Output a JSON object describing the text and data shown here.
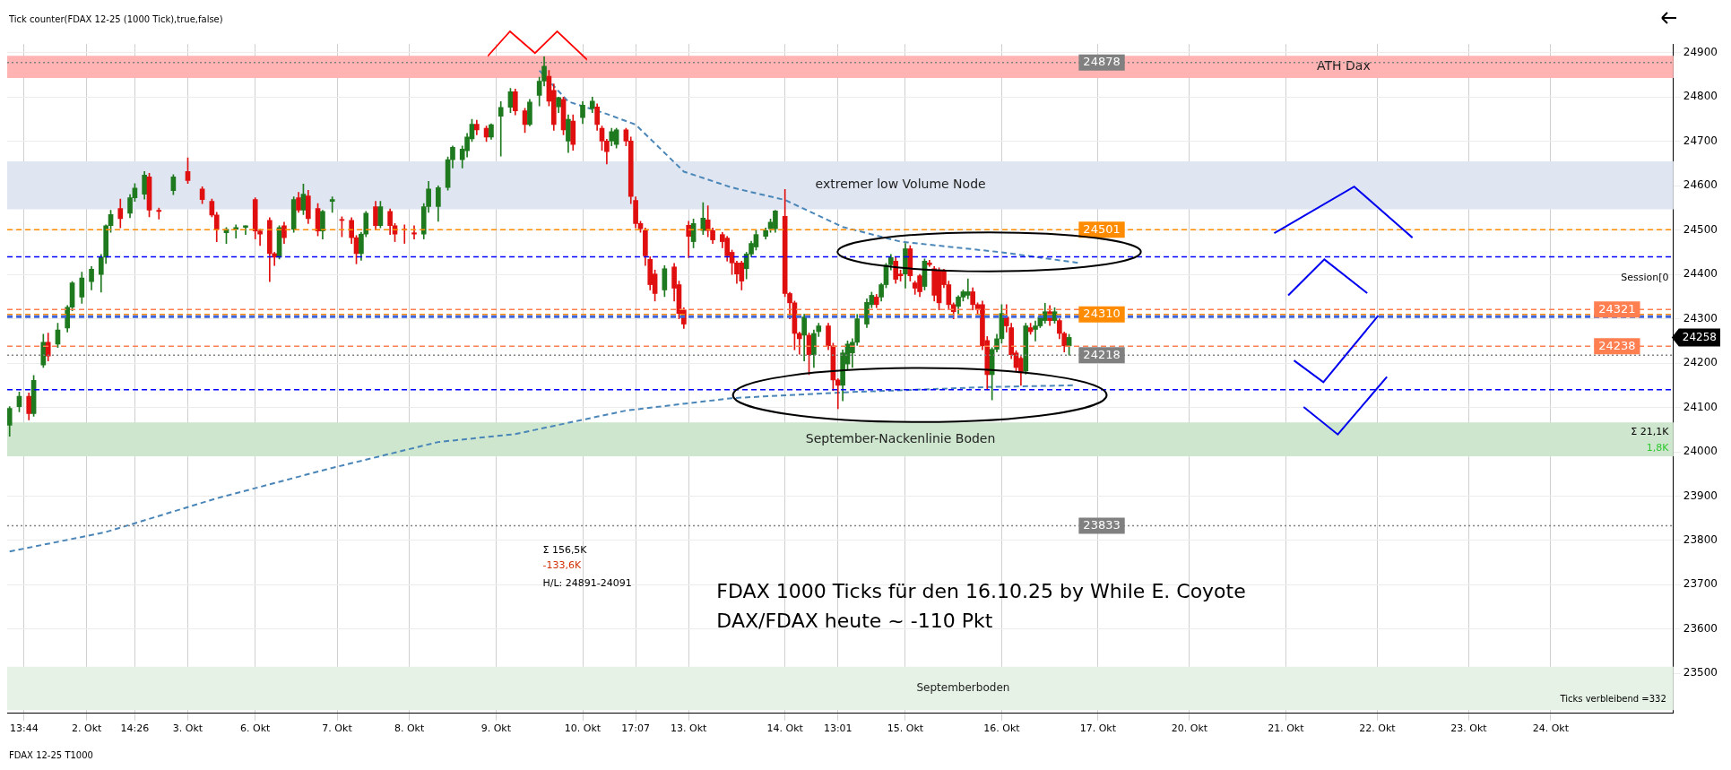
{
  "chart_data": {
    "type": "candlestick",
    "subtitle": "Tick counter(FDAX 12-25 (1000 Tick),true,false)",
    "categories": [
      null,
      null,
      null,
      "13:44",
      null,
      null,
      null,
      null,
      null,
      null,
      null,
      null,
      null,
      null,
      null,
      null,
      "2. Okt",
      null,
      null,
      null,
      null,
      null,
      null,
      null,
      null,
      null,
      "14:26",
      null,
      null,
      null,
      null,
      null,
      null,
      null,
      null,
      null,
      null,
      "3. Okt",
      null,
      null,
      null,
      null,
      null,
      null,
      null,
      null,
      null,
      null,
      null,
      null,
      null,
      "6. Okt",
      null,
      null,
      null,
      null,
      null,
      null,
      null,
      null,
      null,
      null,
      null,
      null,
      null,
      null,
      null,
      null,
      "7. Okt",
      null,
      null,
      null,
      null,
      null,
      null,
      null,
      null,
      null,
      null,
      null,
      null,
      null,
      null,
      "8. Okt",
      null,
      null,
      null,
      null,
      null,
      null,
      null,
      null,
      null,
      null,
      null,
      null,
      null,
      null,
      null,
      null,
      null,
      "9. Okt",
      null,
      null,
      null,
      null,
      null,
      null,
      null,
      null,
      null,
      null,
      null,
      null,
      null,
      null,
      null,
      null,
      null,
      "10. Okt",
      null,
      null,
      null,
      null,
      null,
      null,
      null,
      null,
      null,
      null,
      "17:07",
      null,
      null,
      null,
      null,
      null,
      null,
      null,
      null,
      null,
      null,
      "13. Okt",
      null,
      null,
      null,
      null,
      null,
      null,
      null,
      null,
      null,
      null,
      null,
      null,
      null,
      null,
      null,
      null,
      null,
      null,
      null,
      "14. Okt",
      null,
      null,
      null,
      null,
      null,
      null,
      null,
      null,
      null,
      null,
      "13:01",
      null,
      null,
      null,
      null,
      null,
      null,
      null,
      null,
      null,
      null,
      null,
      null,
      null,
      "15. Okt",
      null,
      null,
      null,
      null,
      null,
      null,
      null,
      null,
      null,
      null,
      null,
      null,
      null,
      null,
      null,
      null,
      null,
      null,
      null,
      "16. Okt",
      null,
      null,
      null,
      null,
      null,
      null,
      null,
      null,
      null,
      null,
      null,
      null,
      null,
      null,
      null,
      null,
      null,
      null,
      null,
      "17. Okt",
      null,
      null,
      null,
      null,
      null,
      null,
      null,
      null,
      null,
      null,
      null,
      null,
      null,
      null,
      null,
      null,
      null,
      null,
      "20. Okt",
      null,
      null,
      null,
      null,
      null,
      null,
      null,
      null,
      null,
      null,
      null,
      null,
      null,
      null,
      null,
      null,
      null,
      null,
      null,
      "21. Okt",
      null,
      null,
      null,
      null,
      null,
      null,
      null,
      null,
      null,
      null,
      null,
      null,
      null,
      null,
      null,
      null,
      null,
      null,
      "22. Okt",
      null,
      null,
      null,
      null,
      null,
      null,
      null,
      null,
      null,
      null,
      null,
      null,
      null,
      null,
      null,
      null,
      null,
      null,
      "23. Okt",
      null,
      null,
      null,
      null,
      null,
      null,
      null,
      null,
      null,
      null,
      null,
      null,
      null,
      null,
      null,
      null,
      "24. Okt",
      null,
      null,
      null,
      null,
      null,
      null,
      null,
      null,
      null,
      null,
      null,
      null,
      null,
      null,
      null,
      null,
      null,
      null,
      null,
      null,
      null,
      null,
      null,
      null,
      null
    ],
    "ohlc": [
      [
        24060,
        24102,
        24035,
        24098
      ],
      null,
      [
        24102,
        24135,
        24090,
        24125
      ],
      null,
      [
        24125,
        24133,
        24072,
        24086
      ],
      [
        24086,
        24172,
        24080,
        24161
      ],
      null,
      [
        24196,
        24265,
        24190,
        24247
      ],
      [
        24247,
        24268,
        24205,
        24216
      ],
      null,
      [
        24243,
        24290,
        24235,
        24275
      ],
      null,
      [
        24279,
        24330,
        24270,
        24326
      ],
      [
        24326,
        24384,
        24318,
        24381
      ],
      null,
      [
        24349,
        24405,
        24335,
        24392
      ],
      null,
      [
        24384,
        24418,
        24365,
        24412
      ],
      null,
      [
        24400,
        24445,
        24360,
        24439
      ],
      [
        24439,
        24512,
        24425,
        24510
      ],
      [
        24510,
        24545,
        24495,
        24535
      ],
      null,
      [
        24549,
        24570,
        24505,
        24526
      ],
      null,
      [
        24538,
        24580,
        24528,
        24573
      ],
      [
        24573,
        24605,
        24565,
        24595
      ],
      null,
      [
        24581,
        24632,
        24570,
        24624
      ],
      [
        24620,
        24628,
        24530,
        24545
      ],
      null,
      [
        24545,
        24550,
        24525,
        24542
      ],
      null,
      null,
      [
        24589,
        24625,
        24580,
        24620
      ],
      null,
      null,
      [
        24632,
        24663,
        24605,
        24612
      ],
      null,
      null,
      [
        24593,
        24598,
        24560,
        24569
      ],
      null,
      [
        24565,
        24570,
        24530,
        24534
      ],
      [
        24534,
        24540,
        24474,
        24502
      ],
      null,
      [
        24494,
        24506,
        24470,
        24502
      ],
      null,
      [
        24502,
        24512,
        24482,
        24506
      ],
      null,
      [
        24506,
        24510,
        24490,
        24510
      ],
      null,
      [
        24569,
        24573,
        24480,
        24498
      ],
      [
        24498,
        24502,
        24465,
        24491
      ],
      null,
      [
        24522,
        24528,
        24384,
        24447
      ],
      [
        24447,
        24450,
        24420,
        24439
      ],
      [
        24439,
        24510,
        24435,
        24506
      ],
      [
        24510,
        24518,
        24470,
        24483
      ],
      null,
      [
        24502,
        24575,
        24495,
        24569
      ],
      [
        24573,
        24585,
        24540,
        24545
      ],
      [
        24545,
        24604,
        24535,
        24581
      ],
      [
        24577,
        24590,
        24515,
        24526
      ],
      null,
      [
        24549,
        24560,
        24487,
        24498
      ],
      [
        24498,
        24545,
        24480,
        24542
      ],
      null,
      [
        24565,
        24575,
        24540,
        24569
      ],
      null,
      [
        24524,
        24530,
        24485,
        24522
      ],
      null,
      [
        24522,
        24528,
        24470,
        24483
      ],
      [
        24483,
        24488,
        24424,
        24447
      ],
      [
        24447,
        24495,
        24432,
        24491
      ],
      [
        24491,
        24542,
        24485,
        24538
      ],
      null,
      [
        24553,
        24565,
        24500,
        24510
      ],
      [
        24510,
        24565,
        24505,
        24553
      ],
      null,
      [
        24542,
        24548,
        24490,
        24510
      ],
      [
        24510,
        24515,
        24474,
        24491
      ],
      null,
      [
        24502,
        24512,
        24470,
        24500
      ],
      null,
      [
        24494,
        24510,
        24480,
        24491
      ],
      null,
      [
        24491,
        24560,
        24480,
        24553
      ],
      [
        24553,
        24610,
        24540,
        24593
      ],
      null,
      [
        24553,
        24600,
        24520,
        24596
      ],
      null,
      [
        24596,
        24665,
        24590,
        24659
      ],
      [
        24659,
        24690,
        24640,
        24687
      ],
      null,
      [
        24659,
        24690,
        24640,
        24683
      ],
      [
        24679,
        24718,
        24665,
        24710
      ],
      [
        24706,
        24750,
        24700,
        24739
      ],
      [
        24739,
        24748,
        24715,
        24726
      ],
      null,
      [
        24730,
        24735,
        24700,
        24710
      ],
      [
        24710,
        24740,
        24705,
        24738
      ],
      null,
      [
        24757,
        24790,
        24667,
        24777
      ],
      null,
      [
        24777,
        24820,
        24765,
        24812
      ],
      [
        24812,
        24818,
        24760,
        24769
      ],
      null,
      [
        24769,
        24775,
        24720,
        24738
      ],
      [
        24738,
        24795,
        24735,
        24789
      ],
      null,
      [
        24804,
        24845,
        24780,
        24836
      ],
      [
        24836,
        24891,
        24825,
        24870
      ],
      [
        24847,
        24860,
        24780,
        24791
      ],
      [
        24815,
        24830,
        24725,
        24738
      ],
      [
        24778,
        24800,
        24765,
        24799
      ],
      [
        24795,
        24800,
        24715,
        24726
      ],
      [
        24701,
        24760,
        24675,
        24750
      ],
      [
        24746,
        24760,
        24680,
        24693
      ],
      null,
      [
        24754,
        24790,
        24740,
        24782
      ],
      null,
      [
        24774,
        24800,
        24765,
        24791
      ],
      [
        24778,
        24785,
        24725,
        24738
      ],
      [
        24730,
        24735,
        24680,
        24701
      ],
      [
        24701,
        24705,
        24649,
        24677
      ],
      [
        24701,
        24730,
        24690,
        24722
      ],
      [
        24693,
        24730,
        24685,
        24726
      ],
      null,
      [
        24726,
        24730,
        24690,
        24701
      ],
      [
        24701,
        24710,
        24560,
        24576
      ],
      [
        24567,
        24575,
        24505,
        24515
      ],
      [
        24515,
        24520,
        24495,
        24503
      ],
      [
        24499,
        24505,
        24420,
        24442
      ],
      [
        24434,
        24440,
        24365,
        24377
      ],
      [
        24401,
        24410,
        24340,
        24357
      ],
      null,
      [
        24365,
        24420,
        24350,
        24413
      ],
      null,
      [
        24417,
        24425,
        24340,
        24369
      ],
      [
        24377,
        24385,
        24300,
        24312
      ],
      [
        24320,
        24325,
        24278,
        24288
      ],
      [
        24511,
        24520,
        24438,
        24486
      ],
      [
        24474,
        24525,
        24460,
        24515
      ],
      null,
      [
        24499,
        24562,
        24490,
        24527
      ],
      [
        24523,
        24555,
        24485,
        24499
      ],
      [
        24499,
        24505,
        24470,
        24478
      ],
      null,
      [
        24490,
        24495,
        24460,
        24474
      ],
      [
        24482,
        24486,
        24430,
        24442
      ],
      [
        24450,
        24455,
        24400,
        24426
      ],
      [
        24426,
        24430,
        24380,
        24401
      ],
      [
        24426,
        24430,
        24365,
        24385
      ],
      [
        24413,
        24450,
        24390,
        24446
      ],
      [
        24446,
        24475,
        24440,
        24470
      ],
      [
        24462,
        24500,
        24455,
        24490
      ],
      null,
      [
        24486,
        24505,
        24480,
        24499
      ],
      [
        24503,
        24525,
        24495,
        24518
      ],
      [
        24503,
        24545,
        24495,
        24543
      ],
      null,
      [
        24531,
        24592,
        24350,
        24357
      ],
      [
        24357,
        24360,
        24300,
        24336
      ],
      [
        24336,
        24340,
        24230,
        24267
      ],
      [
        24267,
        24270,
        24220,
        24255
      ],
      [
        24263,
        24310,
        24205,
        24304
      ],
      [
        24263,
        24268,
        24174,
        24219
      ],
      [
        24219,
        24275,
        24190,
        24267
      ],
      [
        24271,
        24290,
        24260,
        24284
      ],
      null,
      [
        24284,
        24290,
        24230,
        24239
      ],
      [
        24239,
        24245,
        24138,
        24162
      ],
      [
        24162,
        24165,
        24097,
        24150
      ],
      [
        24150,
        24230,
        24115,
        24223
      ],
      [
        24198,
        24250,
        24185,
        24243
      ],
      [
        24223,
        24255,
        24190,
        24247
      ],
      [
        24247,
        24310,
        24240,
        24300
      ],
      null,
      [
        24288,
        24345,
        24280,
        24337
      ],
      [
        24332,
        24360,
        24325,
        24353
      ],
      [
        24349,
        24355,
        24325,
        24332
      ],
      [
        24349,
        24380,
        24340,
        24377
      ],
      [
        24377,
        24425,
        24370,
        24421
      ],
      [
        24422,
        24445,
        24410,
        24438
      ],
      [
        24430,
        24440,
        24380,
        24389
      ],
      [
        24401,
        24410,
        24385,
        24397
      ],
      [
        24401,
        24470,
        24369,
        24458
      ],
      [
        24458,
        24465,
        24385,
        24397
      ],
      [
        24381,
        24385,
        24355,
        24369
      ],
      [
        24397,
        24400,
        24350,
        24361
      ],
      [
        24373,
        24435,
        24365,
        24430
      ],
      [
        24426,
        24432,
        24418,
        24422
      ],
      [
        24413,
        24418,
        24340,
        24353
      ],
      [
        24409,
        24415,
        24320,
        24336
      ],
      [
        24409,
        24412,
        24370,
        24377
      ],
      [
        24377,
        24385,
        24320,
        24332
      ],
      [
        24332,
        24336,
        24300,
        24316
      ],
      [
        24328,
        24352,
        24310,
        24349
      ],
      [
        24349,
        24365,
        24340,
        24361
      ],
      [
        24353,
        24390,
        24345,
        24361
      ],
      [
        24361,
        24370,
        24320,
        24332
      ],
      [
        24332,
        24336,
        24310,
        24320
      ],
      [
        24332,
        24340,
        24230,
        24239
      ],
      [
        24251,
        24260,
        24140,
        24174
      ],
      [
        24174,
        24235,
        24117,
        24231
      ],
      [
        24231,
        24265,
        24225,
        24255
      ],
      [
        24255,
        24332,
        24245,
        24312
      ],
      [
        24304,
        24332,
        24270,
        24284
      ],
      [
        24280,
        24290,
        24210,
        24219
      ],
      [
        24223,
        24228,
        24180,
        24190
      ],
      [
        24211,
        24215,
        24150,
        24178
      ],
      [
        24182,
        24290,
        24175,
        24284
      ],
      [
        24280,
        24290,
        24265,
        24271
      ],
      [
        24276,
        24295,
        24250,
        24284
      ],
      [
        24284,
        24310,
        24280,
        24304
      ],
      [
        24296,
        24335,
        24290,
        24316
      ],
      [
        24316,
        24330,
        24285,
        24296
      ],
      [
        24296,
        24325,
        24290,
        24316
      ],
      [
        24296,
        24300,
        24255,
        24267
      ],
      [
        24267,
        24270,
        24225,
        24239
      ],
      [
        24239,
        24265,
        24218,
        24258
      ],
      null,
      null,
      null,
      null,
      null,
      null,
      null,
      null,
      null,
      null,
      null,
      null,
      null,
      null,
      null,
      null,
      null,
      null,
      null,
      null,
      null,
      null,
      null,
      null,
      null,
      null,
      null,
      null,
      null,
      null,
      null,
      null,
      null,
      null,
      null,
      null,
      null,
      null,
      null,
      null,
      null,
      null,
      null,
      null,
      null,
      null,
      null,
      null,
      null,
      null,
      null,
      null,
      null,
      null,
      null,
      null,
      null,
      null,
      null,
      null,
      null,
      null,
      null,
      null,
      null,
      null,
      null,
      null,
      null,
      null,
      null,
      null,
      null,
      null,
      null,
      null,
      null,
      null,
      null,
      null,
      null,
      null,
      null,
      null,
      null,
      null,
      null,
      null,
      null,
      null,
      null,
      null,
      null,
      null,
      null,
      null,
      null,
      null,
      null,
      null,
      null,
      null,
      null,
      null,
      null,
      null,
      null,
      null,
      null,
      null,
      null,
      null,
      null,
      null,
      null,
      null,
      null,
      null,
      null,
      null,
      null,
      null,
      null,
      null,
      null
    ],
    "series": [
      {
        "type": "line",
        "color": "#4a86b8",
        "line_style": "dashed",
        "values": [
          23775,
          null,
          null,
          null,
          null,
          null,
          null,
          null,
          null,
          null,
          null,
          null,
          null,
          null,
          null,
          null,
          null,
          null,
          null,
          null,
          23819,
          null,
          null,
          null,
          null,
          null,
          null,
          null,
          null,
          null,
          null,
          null,
          null,
          null,
          null,
          null,
          null,
          null,
          null,
          null,
          null,
          null,
          null,
          23895,
          null,
          null,
          null,
          null,
          null,
          null,
          null,
          null,
          null,
          null,
          null,
          null,
          null,
          null,
          null,
          null,
          null,
          null,
          null,
          null,
          null,
          null,
          23961,
          null,
          null,
          null,
          null,
          null,
          null,
          null,
          null,
          null,
          null,
          null,
          null,
          null,
          null,
          null,
          null,
          null,
          null,
          null,
          null,
          null,
          null,
          24022,
          null,
          null,
          null,
          null,
          null,
          null,
          null,
          null,
          null,
          null,
          null,
          null,
          null,
          null,
          null,
          24040,
          null,
          null,
          null,
          null,
          null,
          null,
          null,
          null,
          null,
          null,
          null,
          null,
          null,
          null,
          null,
          null,
          null,
          null,
          null,
          null,
          null,
          null,
          24093,
          null,
          null,
          null,
          null,
          null,
          null,
          null,
          null,
          null,
          null,
          null,
          null,
          null,
          null,
          null,
          null,
          null,
          null,
          null,
          null,
          null,
          24121,
          null,
          null,
          null,
          null,
          null,
          null,
          null,
          null,
          null,
          null,
          null,
          null,
          null,
          null,
          null,
          null,
          null,
          null,
          null,
          null,
          null,
          null,
          24134,
          null,
          null,
          null,
          null,
          null,
          null,
          null,
          null,
          null,
          null,
          null,
          null,
          null,
          null,
          null,
          null,
          null,
          null,
          null,
          null,
          null,
          null,
          null,
          null,
          null,
          null,
          null,
          null,
          null,
          24146,
          null,
          null,
          null,
          null,
          null,
          null,
          null,
          null,
          null,
          null,
          null,
          null,
          null,
          null,
          null,
          null,
          null,
          24150,
          null,
          null,
          null,
          null,
          null,
          null,
          null,
          null,
          null,
          null,
          null,
          null,
          null,
          null,
          null,
          null,
          null,
          null,
          null,
          null,
          null,
          null,
          null,
          null,
          null,
          null,
          null,
          null,
          null,
          null,
          null,
          null,
          null,
          null,
          null,
          null,
          null,
          null,
          null,
          null,
          null,
          null,
          null,
          null,
          null,
          null,
          null,
          null,
          null,
          null,
          null,
          null,
          null,
          null,
          null,
          null,
          null,
          null,
          null,
          null,
          null,
          null,
          null,
          null,
          null,
          null,
          null,
          null,
          null,
          null,
          null,
          null,
          null,
          null,
          null,
          null,
          null,
          null,
          null,
          null,
          null,
          null,
          null,
          null,
          null,
          null,
          null,
          null,
          null,
          null,
          null,
          null,
          null,
          null,
          null,
          null,
          null,
          null,
          null,
          null,
          null,
          null,
          null,
          null,
          null,
          null,
          null,
          null,
          null,
          null,
          null,
          null,
          null,
          null,
          null,
          null,
          null,
          null,
          null,
          null,
          null,
          null,
          null,
          null
        ]
      },
      {
        "type": "line",
        "color": "#4a86b8",
        "line_style": "dashed",
        "values": [
          null,
          null,
          null,
          null,
          null,
          null,
          null,
          null,
          null,
          null,
          null,
          null,
          null,
          null,
          null,
          null,
          null,
          null,
          null,
          null,
          null,
          null,
          null,
          null,
          null,
          null,
          null,
          null,
          null,
          null,
          null,
          null,
          null,
          null,
          null,
          null,
          null,
          null,
          null,
          null,
          null,
          null,
          null,
          null,
          null,
          null,
          null,
          null,
          null,
          null,
          null,
          null,
          null,
          null,
          null,
          null,
          null,
          null,
          null,
          null,
          null,
          null,
          null,
          null,
          null,
          null,
          null,
          null,
          null,
          null,
          null,
          null,
          null,
          null,
          null,
          null,
          null,
          null,
          null,
          null,
          null,
          null,
          null,
          null,
          null,
          null,
          null,
          null,
          null,
          null,
          null,
          null,
          null,
          null,
          null,
          null,
          null,
          null,
          null,
          null,
          null,
          null,
          null,
          null,
          null,
          null,
          null,
          null,
          null,
          null,
          24860,
          null,
          null,
          null,
          null,
          null,
          24790,
          null,
          null,
          null,
          null,
          null,
          null,
          null,
          24762,
          null,
          null,
          null,
          null,
          null,
          24738,
          null,
          null,
          null,
          null,
          null,
          null,
          null,
          null,
          null,
          24632,
          null,
          null,
          null,
          null,
          null,
          null,
          null,
          null,
          null,
          24596,
          null,
          null,
          null,
          null,
          null,
          null,
          null,
          null,
          null,
          null,
          24568,
          null,
          null,
          null,
          null,
          null,
          null,
          null,
          null,
          null,
          null,
          null,
          24507,
          null,
          null,
          null,
          null,
          null,
          null,
          null,
          null,
          null,
          null,
          null,
          24474,
          null,
          null,
          null,
          null,
          null,
          null,
          null,
          null,
          null,
          null,
          null,
          null,
          null,
          null,
          null,
          null,
          null,
          null,
          null,
          null,
          24450,
          null,
          null,
          null,
          null,
          null,
          null,
          null,
          null,
          null,
          null,
          null,
          null,
          null,
          null,
          null,
          24426,
          null,
          null,
          null,
          null,
          null,
          null,
          null,
          null,
          null,
          null,
          null,
          null,
          null,
          null,
          null,
          null,
          null,
          null,
          null,
          null,
          null,
          null,
          null,
          null,
          null,
          null,
          null,
          null,
          null,
          null,
          null,
          null,
          null,
          null,
          null,
          null,
          null,
          null,
          null,
          null,
          null,
          null,
          null,
          null,
          null,
          null,
          null,
          null,
          null,
          null,
          null,
          null,
          null,
          null,
          null,
          null,
          null,
          null,
          null,
          null,
          null,
          null,
          null,
          null,
          null,
          null,
          null,
          null,
          null,
          null,
          null,
          null,
          null,
          null,
          null,
          null,
          null,
          null,
          null,
          null,
          null,
          null,
          null,
          null,
          null,
          null,
          null,
          null,
          null,
          null,
          null,
          null,
          null,
          null,
          null,
          null,
          null,
          null,
          null,
          null,
          null,
          null,
          null,
          null,
          null,
          null,
          null,
          null,
          null,
          null,
          null,
          null,
          null,
          null,
          null,
          null,
          null,
          null,
          null,
          null,
          null,
          null,
          null
        ]
      }
    ],
    "ylim": [
      23410,
      24920
    ],
    "yticks": [
      23500,
      23600,
      23700,
      23800,
      23900,
      24000,
      24100,
      24200,
      24300,
      24400,
      24500,
      24600,
      24700,
      24800,
      24900
    ],
    "grid": true,
    "marker": "none",
    "bands": [
      {
        "axis": "y",
        "from": 24843,
        "to": 24893,
        "label": "ATH Dax",
        "color": "#ffb3b3"
      },
      {
        "axis": "y",
        "from": 24547,
        "to": 24655,
        "label": "extremer low Volume Node",
        "color": "#dfe6f1"
      },
      {
        "axis": "y",
        "from": 23990,
        "to": 24066,
        "label": "September-Nackenlinie Boden",
        "color": "#cde6cd"
      },
      {
        "axis": "y",
        "from": 23417,
        "to": 23515,
        "label": "Septemberboden",
        "color": "#e6f2e6"
      }
    ],
    "ref_lines": [
      {
        "axis": "y",
        "value": 24878,
        "label": "24878",
        "color": "#808080",
        "line_style": "dotted"
      },
      {
        "axis": "y",
        "value": 24501,
        "label": "24501",
        "color": "#ff8c00",
        "line_style": "dashed"
      },
      {
        "axis": "y",
        "value": 24310,
        "label": "24310",
        "color": "#ff8c00",
        "line_style": "dashed"
      },
      {
        "axis": "y",
        "value": 24305,
        "color": "#3c64dc",
        "line_style": "dashed"
      },
      {
        "axis": "y",
        "value": 24321,
        "label": "24321",
        "color": "#ff7f50",
        "line_style": "dashed"
      },
      {
        "axis": "y",
        "value": 24238,
        "label": "24238",
        "color": "#ff7f50",
        "line_style": "dashed"
      },
      {
        "axis": "y",
        "value": 24218,
        "label": "24218",
        "color": "#808080",
        "line_style": "dotted"
      },
      {
        "axis": "y",
        "value": 23833,
        "label": "23833",
        "color": "#808080",
        "line_style": "dotted"
      },
      {
        "axis": "y",
        "value": 24440,
        "color": "#0000ff",
        "line_style": "dashed"
      },
      {
        "axis": "y",
        "value": 24140,
        "color": "#0000ff",
        "line_style": "dashed"
      }
    ],
    "annotations": [
      "FDAX 1000 Ticks für den 16.10.25 by While E. Coyote",
      "DAX/FDAX heute ~ -110 Pkt",
      "Σ 156,5K",
      "-133,6K",
      "H/L: 24891-24091",
      "Σ 21,1K",
      "1,8K",
      "Session[0",
      "Ticks verbleibend =332",
      "FDAX 12-25 T1000",
      "24258"
    ]
  }
}
